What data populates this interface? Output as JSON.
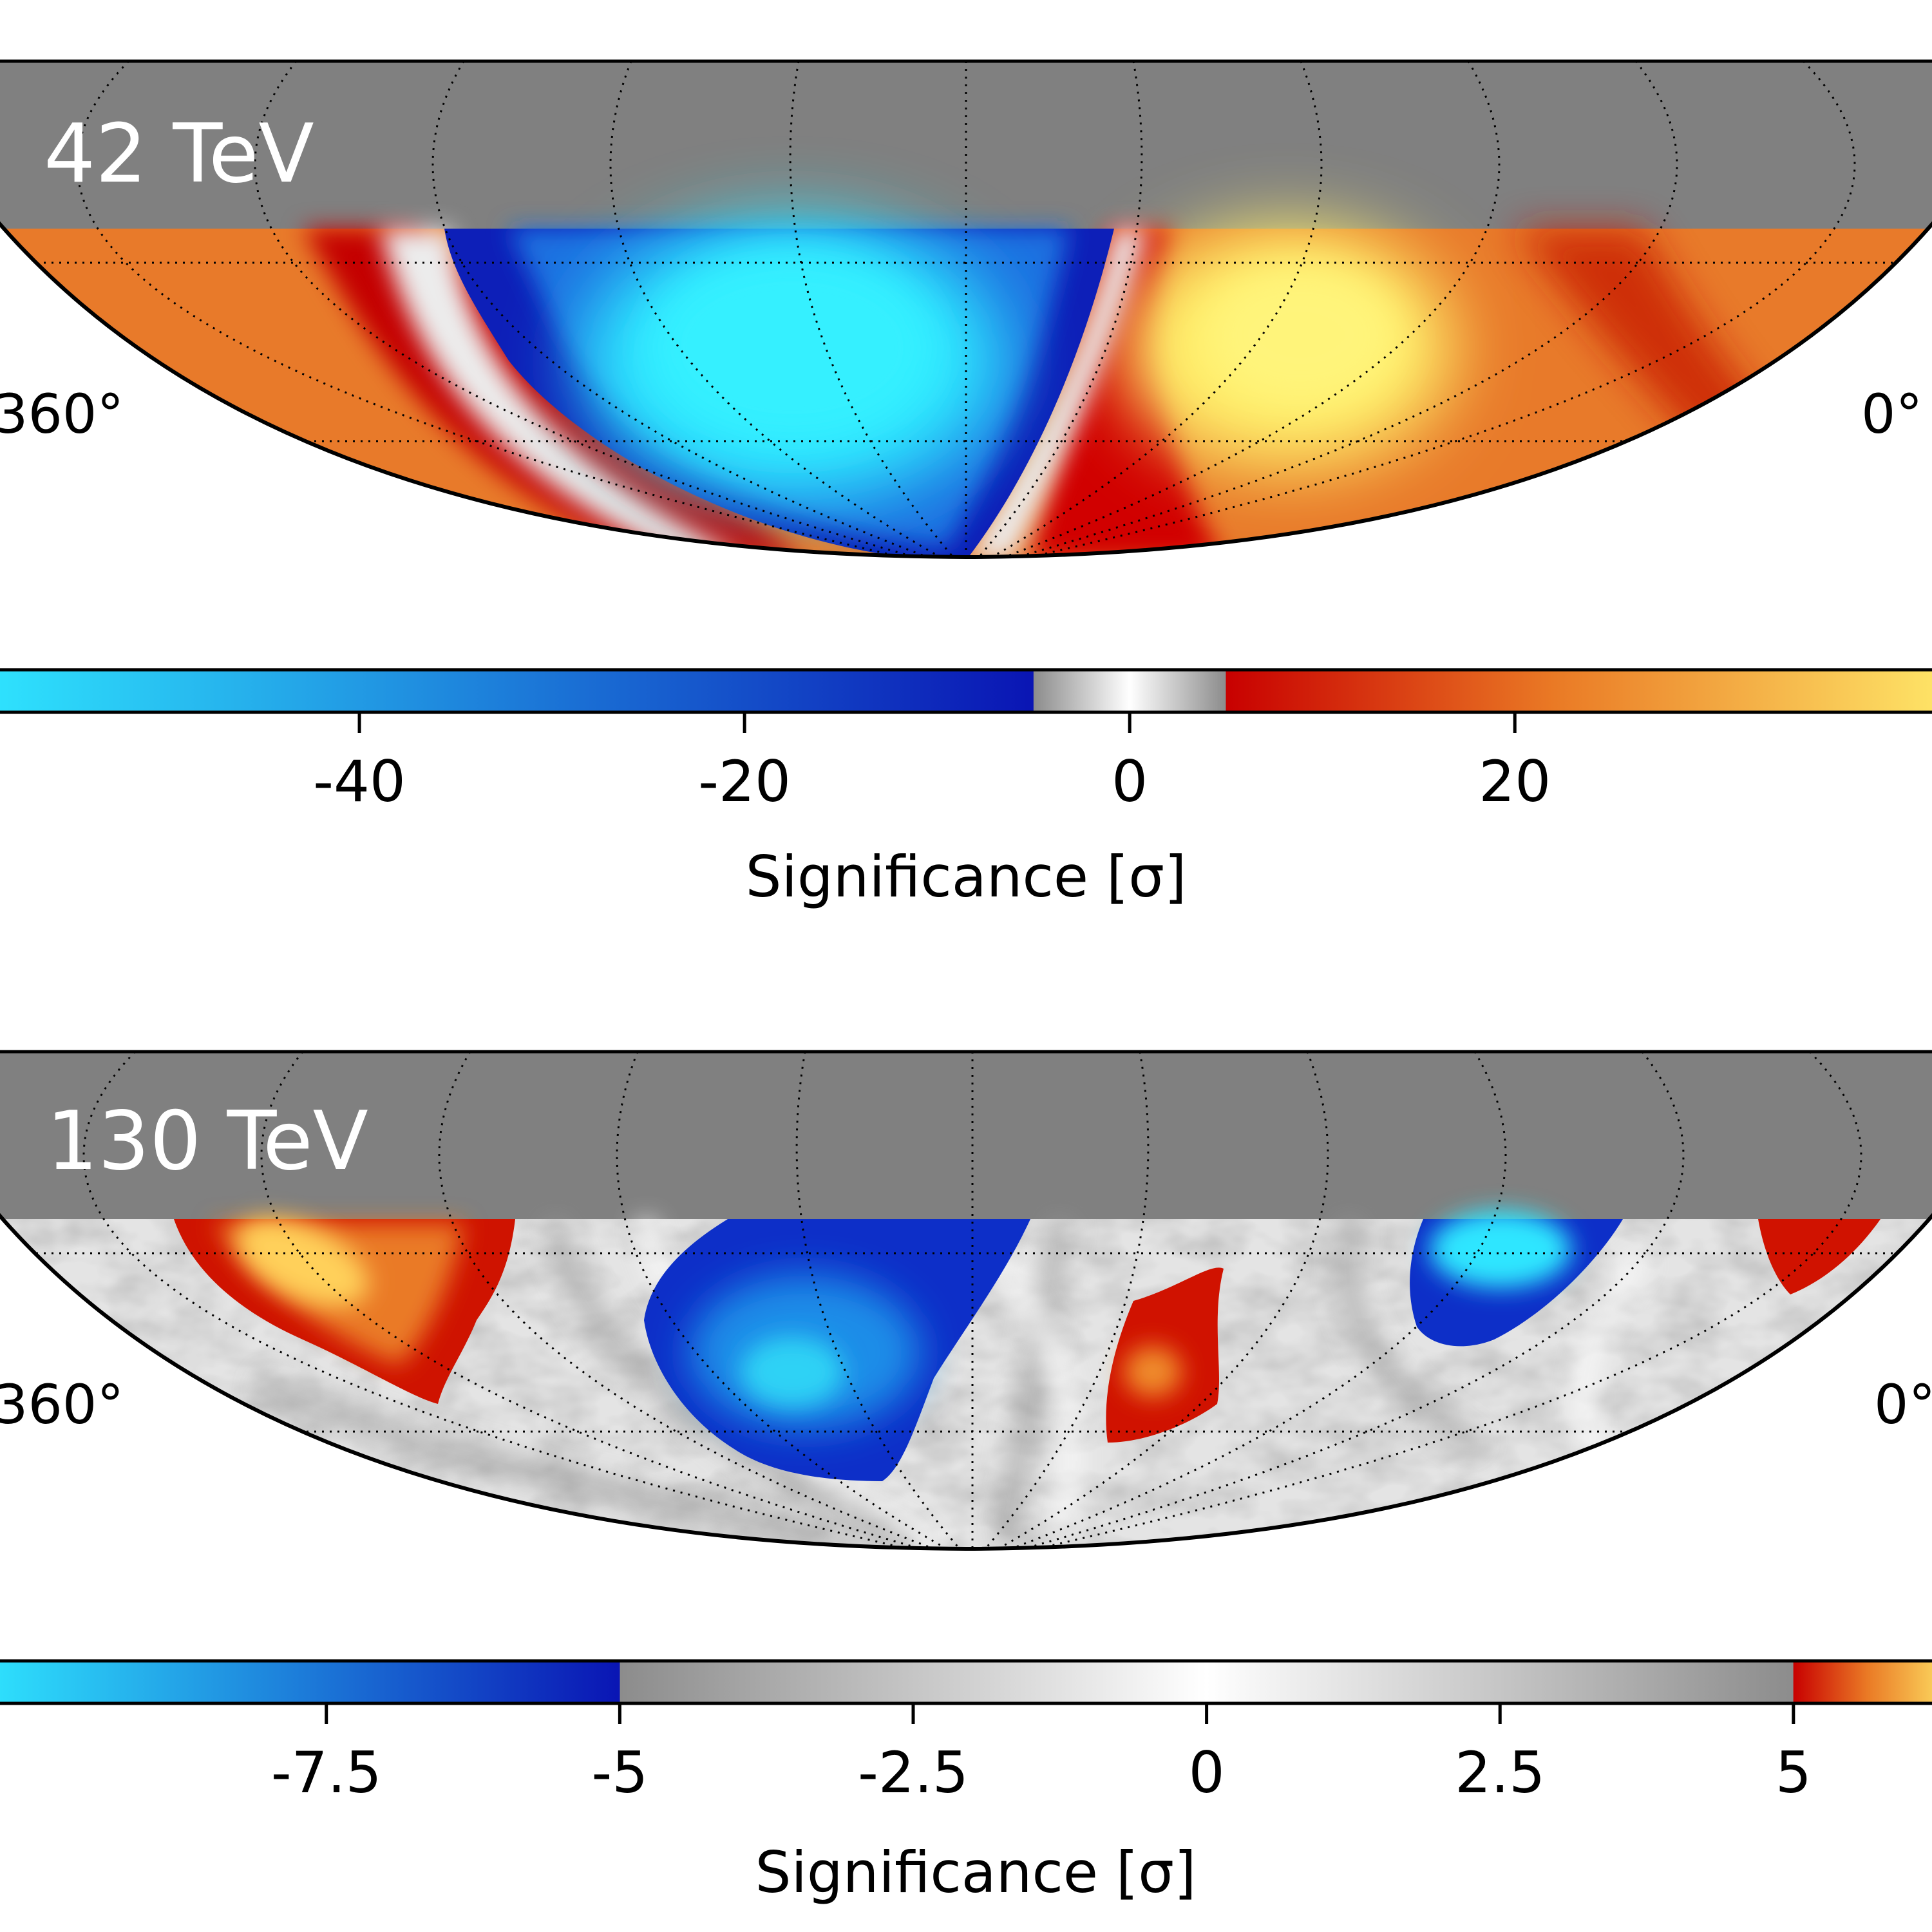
{
  "chart_data": [
    {
      "type": "heatmap",
      "projection": "Mollweide (southern-sky section)",
      "panel_label": "42 TeV",
      "lon_labels": {
        "left": "360°",
        "right": "0°"
      },
      "grid": true,
      "colorbar": {
        "label": "Significance [σ]",
        "ticks": [
          -40,
          -20,
          0,
          20
        ],
        "tick_labels": [
          "-40",
          "-20",
          "0",
          "20"
        ],
        "range": [
          -60,
          43
        ],
        "grey_band": [
          -5,
          5
        ],
        "colors": {
          "neg_max": "#2fe6ff",
          "neg_min": "#0a15b4",
          "grey_edge": "#8c8c8c",
          "zero": "#ffffff",
          "pos_min": "#c80000",
          "pos_mid": "#ea7a25",
          "pos_max": "#ffe96a"
        }
      },
      "features": [
        {
          "type": "deficit",
          "approx_min_significance": -60
        },
        {
          "type": "excess",
          "approx_max_significance": 43
        }
      ]
    },
    {
      "type": "heatmap",
      "projection": "Mollweide (southern-sky section)",
      "panel_label": "130 TeV",
      "lon_labels": {
        "left": "360°",
        "right": "0°"
      },
      "grid": true,
      "colorbar": {
        "label": "Significance [σ]",
        "ticks": [
          -7.5,
          -5,
          -2.5,
          0,
          2.5,
          5
        ],
        "tick_labels": [
          "-7.5",
          "-5",
          "-2.5",
          "0",
          "2.5",
          "5"
        ],
        "range": [
          -10.5,
          6.4
        ],
        "grey_band": [
          -5,
          5
        ],
        "colors": {
          "neg_max": "#2fe6ff",
          "neg_min": "#0a15b4",
          "grey_edge": "#8c8c8c",
          "zero": "#ffffff",
          "pos_min": "#c80000",
          "pos_mid": "#ea7a25",
          "pos_max": "#ffe96a"
        }
      },
      "features": [
        {
          "type": "excess",
          "approx_max_significance": 6.4
        },
        {
          "type": "deficit",
          "approx_min_significance": -10.5
        },
        {
          "type": "excess",
          "approx_max_significance": 5.8
        },
        {
          "type": "deficit",
          "approx_min_significance": -10.5
        },
        {
          "type": "excess",
          "approx_max_significance": 5.5
        }
      ]
    }
  ]
}
